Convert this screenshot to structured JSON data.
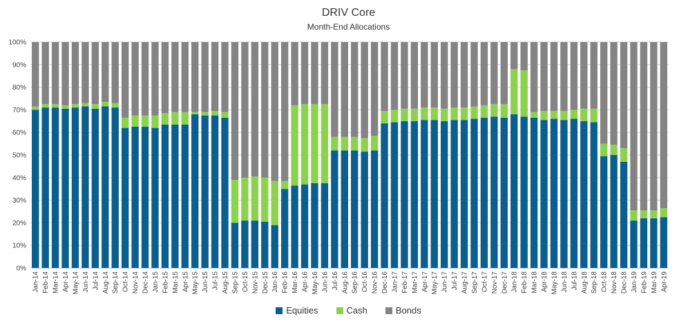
{
  "chart_data": {
    "type": "bar",
    "stacked": true,
    "title": "DRIV Core",
    "subtitle": "Month-End Allocations",
    "ylim": [
      0,
      100
    ],
    "y_ticks": [
      "0%",
      "10%",
      "20%",
      "30%",
      "40%",
      "50%",
      "60%",
      "70%",
      "80%",
      "90%",
      "100%"
    ],
    "legend_position": "bottom",
    "categories": [
      "Jan-14",
      "Feb-14",
      "Mar-14",
      "Apr-14",
      "May-14",
      "Jun-14",
      "Jul-14",
      "Aug-14",
      "Sep-14",
      "Oct-14",
      "Nov-14",
      "Dec-14",
      "Jan-15",
      "Feb-15",
      "Mar-15",
      "Apr-15",
      "May-15",
      "Jun-15",
      "Jul-15",
      "Aug-15",
      "Sep-15",
      "Oct-15",
      "Nov-15",
      "Dec-15",
      "Jan-16",
      "Feb-16",
      "Mar-16",
      "Apr-16",
      "May-16",
      "Jun-16",
      "Jul-16",
      "Aug-16",
      "Sep-16",
      "Oct-16",
      "Nov-16",
      "Dec-16",
      "Jan-17",
      "Feb-17",
      "Mar-17",
      "Apr-17",
      "May-17",
      "Jun-17",
      "Jul-17",
      "Aug-17",
      "Sep-17",
      "Oct-17",
      "Nov-17",
      "Dec-17",
      "Jan-18",
      "Feb-18",
      "Mar-18",
      "Apr-18",
      "May-18",
      "Jun-18",
      "Jul-18",
      "Aug-18",
      "Sep-18",
      "Oct-18",
      "Nov-18",
      "Dec-18",
      "Jan-19",
      "Feb-19",
      "Mar-19",
      "Apr-19"
    ],
    "series": [
      {
        "name": "Equities",
        "color": "#0B5F8F",
        "values": [
          70,
          71,
          71,
          70.5,
          71,
          71.5,
          70.5,
          71.5,
          71,
          62,
          62.5,
          62.5,
          62,
          63.5,
          63.5,
          63.5,
          68,
          67.5,
          67.5,
          66.5,
          20,
          21,
          21,
          20.5,
          19,
          35,
          36.5,
          37,
          37.5,
          37.5,
          52,
          52,
          52,
          51.5,
          52,
          64,
          64.5,
          65,
          65,
          65.5,
          65.5,
          65,
          65.5,
          65.5,
          66,
          66.5,
          67,
          66.5,
          68,
          67,
          66.5,
          65.5,
          66,
          65.5,
          66,
          65,
          64.5,
          49.5,
          50,
          47,
          21,
          22,
          22,
          22.5
        ]
      },
      {
        "name": "Cash",
        "color": "#8CD24E",
        "values": [
          1.5,
          1.5,
          1.5,
          1.5,
          1.5,
          1.5,
          2,
          2,
          2,
          4.5,
          5,
          5,
          5.5,
          5,
          5.5,
          5.5,
          1,
          1.5,
          2,
          2.5,
          19,
          19,
          19.5,
          19.5,
          19.5,
          3.5,
          35.5,
          35.5,
          35,
          35,
          6,
          6,
          6,
          6,
          6.5,
          5.5,
          5.5,
          5.5,
          5.5,
          5.5,
          5.5,
          5.5,
          5.5,
          5.5,
          5.5,
          5.5,
          5.5,
          6,
          20,
          20.5,
          2.5,
          4,
          3.5,
          4,
          4,
          5.5,
          6,
          5.5,
          4.5,
          6,
          4.5,
          3.5,
          3.5,
          4
        ]
      },
      {
        "name": "Bonds",
        "color": "#848484",
        "values": [
          28.5,
          27.5,
          27.5,
          28,
          27.5,
          27,
          27.5,
          26.5,
          27,
          33.5,
          32.5,
          32.5,
          32.5,
          31.5,
          31,
          31,
          31,
          31,
          30.5,
          31,
          61,
          60,
          59.5,
          60,
          61.5,
          61.5,
          28,
          27.5,
          27.5,
          27.5,
          42,
          42,
          42,
          42.5,
          41.5,
          30.5,
          30,
          29.5,
          29.5,
          29,
          29,
          29.5,
          29,
          29,
          28.5,
          28,
          27.5,
          27.5,
          12,
          12.5,
          31,
          30.5,
          30.5,
          30.5,
          30,
          29.5,
          29.5,
          45,
          45.5,
          47,
          74.5,
          74.5,
          74.5,
          73.5
        ]
      }
    ]
  }
}
